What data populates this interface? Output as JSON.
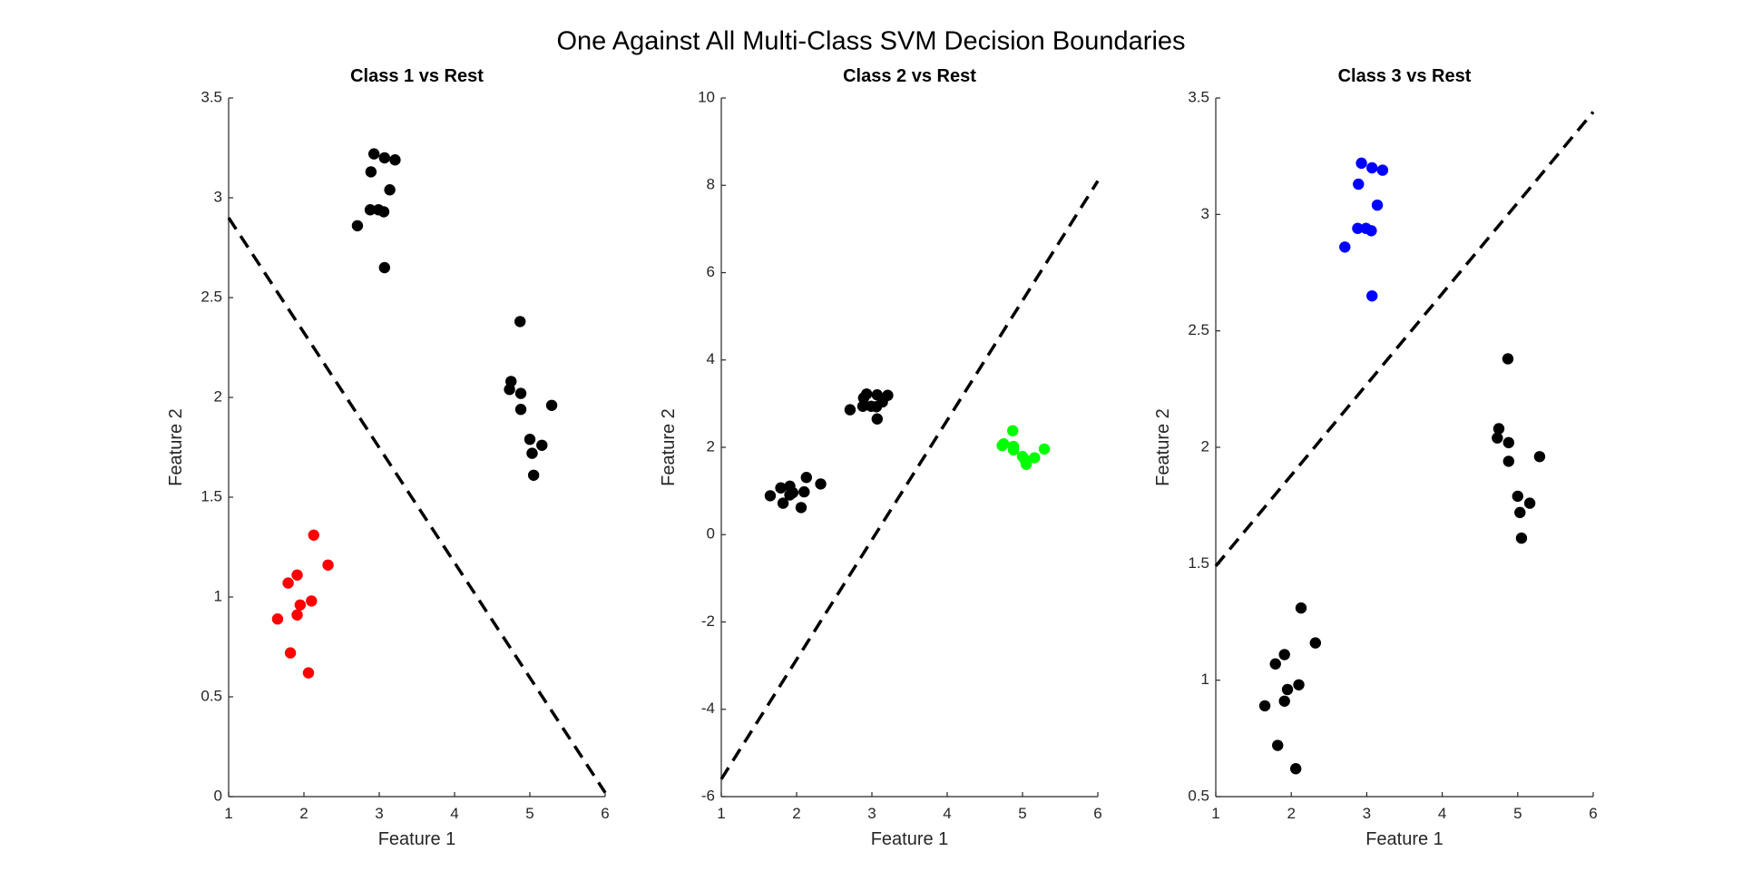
{
  "figure": {
    "title": "One Against All Multi-Class SVM Decision Boundaries"
  },
  "chart_data": [
    {
      "type": "scatter",
      "title": "Class 1 vs Rest",
      "xlabel": "Feature 1",
      "ylabel": "Feature 2",
      "xlim": [
        1,
        6
      ],
      "ylim": [
        0,
        3.5
      ],
      "xticks": [
        1,
        2,
        3,
        4,
        5,
        6
      ],
      "yticks": [
        0,
        0.5,
        1,
        1.5,
        2,
        2.5,
        3,
        3.5
      ],
      "ytick_labels": [
        "0",
        "0.5",
        "1",
        "1.5",
        "2",
        "2.5",
        "3",
        "3.5"
      ],
      "grid": false,
      "decision_boundary": {
        "style": "dashed",
        "color": "#000000",
        "points": [
          [
            1,
            2.9
          ],
          [
            6,
            0.02
          ]
        ]
      },
      "series": [
        {
          "color": "#ff0000",
          "points": [
            [
              1.65,
              0.89
            ],
            [
              1.79,
              1.07
            ],
            [
              1.91,
              1.11
            ],
            [
              2.13,
              1.31
            ],
            [
              2.32,
              1.16
            ],
            [
              1.95,
              0.96
            ],
            [
              2.1,
              0.98
            ],
            [
              1.91,
              0.91
            ],
            [
              1.82,
              0.72
            ],
            [
              2.06,
              0.62
            ]
          ]
        },
        {
          "color": "#000000",
          "points": [
            [
              2.93,
              3.22
            ],
            [
              3.07,
              3.2
            ],
            [
              3.21,
              3.19
            ],
            [
              2.89,
              3.13
            ],
            [
              3.14,
              3.04
            ],
            [
              2.88,
              2.94
            ],
            [
              2.99,
              2.94
            ],
            [
              3.06,
              2.93
            ],
            [
              2.71,
              2.86
            ],
            [
              3.07,
              2.65
            ],
            [
              4.87,
              2.38
            ],
            [
              4.75,
              2.08
            ],
            [
              4.73,
              2.04
            ],
            [
              4.88,
              2.02
            ],
            [
              4.88,
              1.94
            ],
            [
              5.29,
              1.96
            ],
            [
              5.0,
              1.79
            ],
            [
              5.16,
              1.76
            ],
            [
              5.03,
              1.72
            ],
            [
              5.05,
              1.61
            ]
          ]
        }
      ]
    },
    {
      "type": "scatter",
      "title": "Class 2 vs Rest",
      "xlabel": "Feature 1",
      "ylabel": "Feature 2",
      "xlim": [
        1,
        6
      ],
      "ylim": [
        -6,
        10
      ],
      "xticks": [
        1,
        2,
        3,
        4,
        5,
        6
      ],
      "yticks": [
        -6,
        -4,
        -2,
        0,
        2,
        4,
        6,
        8,
        10
      ],
      "ytick_labels": [
        "-6",
        "-4",
        "-2",
        "0",
        "2",
        "4",
        "6",
        "8",
        "10"
      ],
      "grid": false,
      "decision_boundary": {
        "style": "dashed",
        "color": "#000000",
        "points": [
          [
            1,
            -5.6
          ],
          [
            6,
            8.1
          ]
        ]
      },
      "series": [
        {
          "color": "#00ff00",
          "points": [
            [
              4.87,
              2.38
            ],
            [
              4.75,
              2.08
            ],
            [
              4.73,
              2.04
            ],
            [
              4.88,
              2.02
            ],
            [
              4.88,
              1.94
            ],
            [
              5.29,
              1.96
            ],
            [
              5.0,
              1.79
            ],
            [
              5.16,
              1.76
            ],
            [
              5.03,
              1.72
            ],
            [
              5.05,
              1.61
            ]
          ]
        },
        {
          "color": "#000000",
          "points": [
            [
              1.65,
              0.89
            ],
            [
              1.79,
              1.07
            ],
            [
              1.91,
              1.11
            ],
            [
              2.13,
              1.31
            ],
            [
              2.32,
              1.16
            ],
            [
              1.95,
              0.96
            ],
            [
              2.1,
              0.98
            ],
            [
              1.91,
              0.91
            ],
            [
              1.82,
              0.72
            ],
            [
              2.06,
              0.62
            ],
            [
              2.93,
              3.22
            ],
            [
              3.07,
              3.2
            ],
            [
              3.21,
              3.19
            ],
            [
              2.89,
              3.13
            ],
            [
              3.14,
              3.04
            ],
            [
              2.88,
              2.94
            ],
            [
              2.99,
              2.94
            ],
            [
              3.06,
              2.93
            ],
            [
              2.71,
              2.86
            ],
            [
              3.07,
              2.65
            ]
          ]
        }
      ]
    },
    {
      "type": "scatter",
      "title": "Class 3 vs Rest",
      "xlabel": "Feature 1",
      "ylabel": "Feature 2",
      "xlim": [
        1,
        6
      ],
      "ylim": [
        0.5,
        3.5
      ],
      "xticks": [
        1,
        2,
        3,
        4,
        5,
        6
      ],
      "yticks": [
        0.5,
        1,
        1.5,
        2,
        2.5,
        3,
        3.5
      ],
      "ytick_labels": [
        "0.5",
        "1",
        "1.5",
        "2",
        "2.5",
        "3",
        "3.5"
      ],
      "grid": false,
      "decision_boundary": {
        "style": "dashed",
        "color": "#000000",
        "points": [
          [
            1,
            1.49
          ],
          [
            6,
            3.44
          ]
        ]
      },
      "series": [
        {
          "color": "#0000ff",
          "points": [
            [
              2.93,
              3.22
            ],
            [
              3.07,
              3.2
            ],
            [
              3.21,
              3.19
            ],
            [
              2.89,
              3.13
            ],
            [
              3.14,
              3.04
            ],
            [
              2.88,
              2.94
            ],
            [
              2.99,
              2.94
            ],
            [
              3.06,
              2.93
            ],
            [
              2.71,
              2.86
            ],
            [
              3.07,
              2.65
            ]
          ]
        },
        {
          "color": "#000000",
          "points": [
            [
              1.65,
              0.89
            ],
            [
              1.79,
              1.07
            ],
            [
              1.91,
              1.11
            ],
            [
              2.13,
              1.31
            ],
            [
              2.32,
              1.16
            ],
            [
              1.95,
              0.96
            ],
            [
              2.1,
              0.98
            ],
            [
              1.91,
              0.91
            ],
            [
              1.82,
              0.72
            ],
            [
              2.06,
              0.62
            ],
            [
              4.87,
              2.38
            ],
            [
              4.75,
              2.08
            ],
            [
              4.73,
              2.04
            ],
            [
              4.88,
              2.02
            ],
            [
              4.88,
              1.94
            ],
            [
              5.29,
              1.96
            ],
            [
              5.0,
              1.79
            ],
            [
              5.16,
              1.76
            ],
            [
              5.03,
              1.72
            ],
            [
              5.05,
              1.61
            ]
          ]
        }
      ]
    }
  ]
}
